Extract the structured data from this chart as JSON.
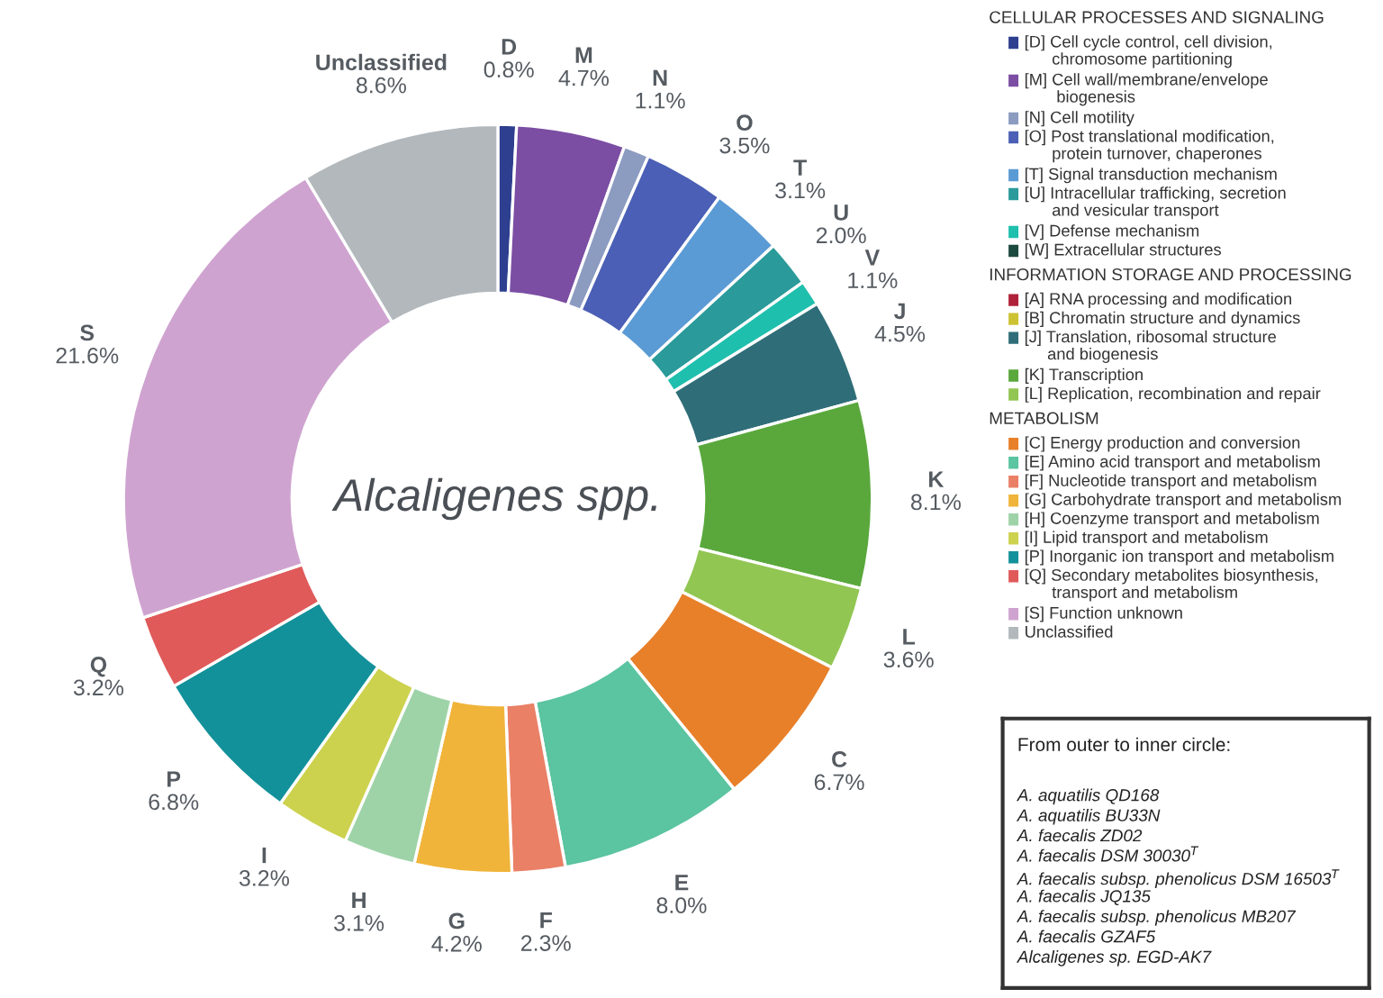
{
  "chart_data": [
    {
      "type": "donut",
      "title": "Alcaligenes spp.",
      "annotations": [
        "From outer to inner circle:",
        "A. aquatilis QD168",
        "A. aquatilis BU33N",
        "A. faecalis ZD02",
        "A. faecalis DSM 30030$^{T}$",
        "A. faecalis subsp. phenolicus DSM 16503$^{T}$",
        "A. faecalis JQ135",
        "A. faecalis subsp. phenolicus MB207",
        "A. faecalis GZAF5",
        "Alcaligenes sp. EGD-AK7"
      ],
      "categories": [
        "D",
        "M",
        "N",
        "O",
        "T",
        "U",
        "V",
        "J",
        "K",
        "L",
        "C",
        "E",
        "F",
        "G",
        "H",
        "I",
        "P",
        "Q",
        "S",
        "Unclassified"
      ],
      "colors": [
        "#2e3f8f",
        "#7b4ea3",
        "#8c9bc0",
        "#4a5fb5",
        "#5b9bd5",
        "#2a9a9a",
        "#1fbfad",
        "#2f6e78",
        "#5aa83c",
        "#92c653",
        "#e8802a",
        "#5bc4a0",
        "#ea8066",
        "#f0b43a",
        "#9ed3a8",
        "#cdd24e",
        "#13919a",
        "#e05a5a",
        "#cfa3d0",
        "#b2b8bc"
      ],
      "value_labels": [
        "0.8%",
        "4.7%",
        "1.1%",
        "3.5%",
        "3.1%",
        "2.0%",
        "1.1%",
        "4.5%",
        "8.1%",
        "3.6%",
        "6.7%",
        "8.0%",
        "2.3%",
        "4.2%",
        "3.1%",
        "3.2%",
        "6.8%",
        "3.2%",
        "21.6%",
        "8.6%"
      ],
      "values": [
        0.8,
        4.7,
        1.1,
        3.5,
        3.1,
        2.0,
        1.1,
        4.5,
        8.1,
        3.6,
        6.7,
        8.0,
        2.3,
        4.2,
        3.1,
        3.2,
        6.8,
        3.2,
        21.6,
        8.6
      ]
    },
    {
      "type": "other",
      "categories": [
        "CELLULAR PROCESSES AND SIGNALING",
        "[D] Cell cycle control, cell division,\n      chromosome partitioning",
        "[M] Cell wall/membrane/envelope\n       biogenesis",
        "[N] Cell motility",
        "[O] Post translational modification,\n      protein turnover, chaperones",
        "[T] Signal transduction mechanism",
        "[U] Intracellular trafficking, secretion\n      and vesicular transport",
        "[V] Defense mechanism",
        "[W] Extracellular structures",
        "INFORMATION STORAGE AND PROCESSING",
        "[A] RNA processing and modification",
        "[B] Chromatin structure and dynamics",
        "[J] Translation, ribosomal structure\n     and biogenesis",
        "[K] Transcription",
        "[L] Replication, recombination and repair",
        "METABOLISM",
        "[C] Energy production and conversion",
        "[E] Amino acid transport and metabolism",
        "[F] Nucleotide transport and metabolism",
        "[G] Carbohydrate transport and metabolism",
        "[H] Coenzyme transport and metabolism",
        "[I] Lipid transport and metabolism",
        "[P] Inorganic ion transport and metabolism",
        "[Q] Secondary metabolites biosynthesis,\n      transport and metabolism",
        "[S] Function unknown",
        "Unclassified"
      ],
      "colors": [
        null,
        "#2e3f8f",
        "#7b4ea3",
        "#8c9bc0",
        "#4a5fb5",
        "#5b9bd5",
        "#2a9a9a",
        "#1fbfad",
        "#1d4a3f",
        null,
        "#b0223a",
        "#cdc232",
        "#2f6e78",
        "#5aa83c",
        "#92c653",
        null,
        "#e8802a",
        "#5bc4a0",
        "#ea8066",
        "#f0b43a",
        "#9ed3a8",
        "#cdd24e",
        "#13919a",
        "#e05a5a",
        "#cfa3d0",
        "#b2b8bc"
      ]
    }
  ]
}
